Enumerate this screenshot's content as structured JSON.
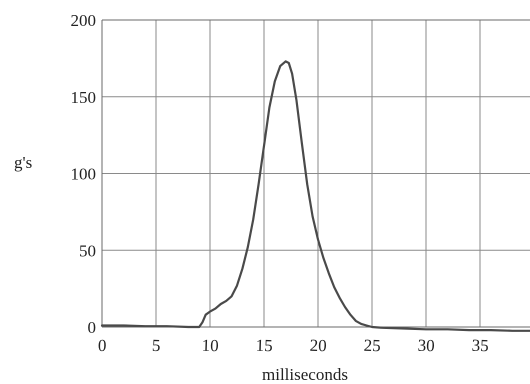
{
  "chart_data": {
    "type": "line",
    "title": "",
    "xlabel": "milliseconds",
    "ylabel": "g's",
    "xlim": [
      0,
      40
    ],
    "ylim": [
      0,
      200
    ],
    "x_ticks": [
      0,
      5,
      10,
      15,
      20,
      25,
      30,
      35
    ],
    "y_ticks": [
      0,
      50,
      100,
      150,
      200
    ],
    "x_tick_labels": [
      "0",
      "5",
      "10",
      "15",
      "20",
      "25",
      "30",
      "35"
    ],
    "y_tick_labels": [
      "0",
      "50",
      "100",
      "150",
      "200"
    ],
    "grid": true,
    "series": [
      {
        "x": [
          0,
          2,
          4,
          6,
          8,
          9,
          9.3,
          9.6,
          10,
          10.5,
          11,
          11.5,
          12,
          12.5,
          13,
          13.5,
          14,
          14.5,
          15,
          15.5,
          16,
          16.5,
          17,
          17.3,
          17.6,
          18,
          18.5,
          19,
          19.5,
          20,
          20.5,
          21,
          21.5,
          22,
          22.5,
          23,
          23.5,
          24,
          24.5,
          25,
          26,
          28,
          30,
          32,
          34,
          36,
          38,
          40
        ],
        "y": [
          1,
          1,
          0.5,
          0.5,
          0,
          0,
          3,
          8,
          10,
          12,
          15,
          17,
          20,
          27,
          38,
          52,
          70,
          93,
          118,
          143,
          160,
          170,
          173,
          172,
          165,
          148,
          120,
          93,
          72,
          57,
          45,
          35,
          26,
          19,
          13,
          8,
          4,
          2,
          1,
          0,
          -0.5,
          -1,
          -1.5,
          -1.5,
          -2,
          -2,
          -2.5,
          -2.5
        ]
      }
    ]
  }
}
